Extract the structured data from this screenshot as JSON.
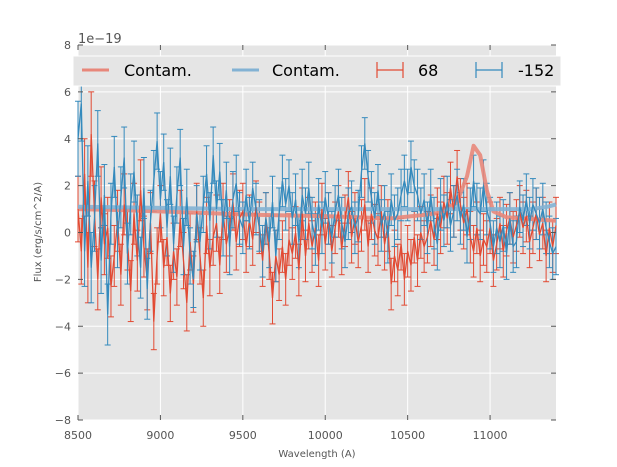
{
  "chart_data": {
    "type": "line",
    "title": "",
    "xlabel": "Wavelength (A)",
    "ylabel": "Flux (erg/s/cm^2/A)",
    "y_offset_label": "1e−19",
    "xlim": [
      8500,
      11400
    ],
    "ylim": [
      -8,
      8
    ],
    "xticks": [
      8500,
      9000,
      9500,
      10000,
      10500,
      11000
    ],
    "xtick_labels": [
      "8500",
      "9000",
      "9500",
      "10000",
      "10500",
      "11000"
    ],
    "yticks": [
      -8,
      -6,
      -4,
      -2,
      0,
      2,
      4,
      6,
      8
    ],
    "ytick_labels": [
      "−8",
      "−6",
      "−4",
      "−2",
      "0",
      "2",
      "4",
      "6",
      "8"
    ],
    "grid": true,
    "legend_position": "top",
    "legend": [
      {
        "label": "Contam.",
        "kind": "line",
        "color": "#E8877A"
      },
      {
        "label": "Contam.",
        "kind": "line",
        "color": "#83B2D4"
      },
      {
        "label": "68",
        "kind": "errorbar",
        "color": "#E24A33"
      },
      {
        "label": "-152",
        "kind": "errorbar",
        "color": "#348ABD"
      }
    ],
    "x_start": 8500,
    "x_step": 20,
    "series": [
      {
        "name": "68",
        "kind": "errorbar",
        "color": "#E24A33",
        "values": [
          1.0,
          -0.8,
          2.5,
          -1.5,
          4.2,
          0.8,
          -2.0,
          1.5,
          -0.5,
          0.2,
          -2.3,
          -1.0,
          0.5,
          -1.8,
          1.2,
          -0.3,
          -2.5,
          0.8,
          -1.2,
          1.8,
          -0.6,
          -2.0,
          0.4,
          -3.8,
          -1.0,
          0.8,
          -1.5,
          -0.2,
          -2.6,
          -0.8,
          -1.9,
          0.6,
          -1.2,
          -3.0,
          -0.4,
          -2.2,
          0.9,
          -1.0,
          -2.8,
          0.3,
          -1.5,
          -0.2,
          0.4,
          -1.4,
          0.9,
          -0.5,
          0.2,
          1.3,
          -0.4,
          0.6,
          0.9,
          -0.6,
          0.5,
          -0.3,
          1.1,
          0.2,
          -1.2,
          0.6,
          -0.9,
          -2.8,
          -1.0,
          -1.8,
          -0.6,
          -2.0,
          -0.3,
          -0.9,
          0.0,
          -1.6,
          0.8,
          -1.0,
          0.4,
          -0.6,
          0.2,
          -1.2,
          1.0,
          -0.5,
          0.6,
          -0.8,
          0.2,
          0.9,
          -0.7,
          0.5,
          1.5,
          -0.2,
          0.6,
          -0.4,
          0.3,
          1.2,
          -0.6,
          0.8,
          0.1,
          -0.3,
          0.9,
          -0.5,
          0.3,
          -2.2,
          -1.0,
          -1.6,
          -0.5,
          -2.0,
          -0.8,
          -1.4,
          -0.2,
          -1.2,
          0.0,
          -0.6,
          -0.2,
          0.5,
          -0.3,
          0.8,
          0.2,
          1.3,
          0.6,
          1.9,
          0.9,
          2.4,
          1.2,
          0.4,
          1.0,
          -0.2,
          -0.8,
          0.2,
          -1.0,
          -0.3,
          -0.6,
          0.2,
          -1.2,
          -0.5,
          0.4,
          -0.8,
          0.1,
          0.6,
          -0.2,
          0.3,
          0.9,
          0.2,
          0.7,
          -0.4,
          0.2,
          0.8,
          -0.1,
          0.4,
          -1.0,
          0.2,
          -0.6,
          0.3,
          -0.9
        ],
        "errors": [
          1.4,
          1.4,
          1.5,
          1.5,
          1.8,
          1.4,
          1.3,
          1.3,
          1.3,
          1.3,
          1.3,
          1.3,
          1.3,
          1.3,
          1.3,
          1.3,
          1.3,
          1.3,
          1.3,
          1.3,
          1.3,
          1.3,
          1.3,
          1.2,
          1.2,
          1.2,
          1.2,
          1.2,
          1.2,
          1.2,
          1.2,
          1.2,
          1.2,
          1.2,
          1.2,
          1.2,
          1.2,
          1.2,
          1.2,
          1.2,
          1.2,
          1.2,
          1.2,
          1.2,
          1.2,
          1.2,
          1.2,
          1.2,
          1.2,
          1.2,
          1.2,
          1.1,
          1.1,
          1.1,
          1.1,
          1.1,
          1.1,
          1.1,
          1.1,
          1.1,
          1.1,
          1.1,
          1.1,
          1.1,
          1.1,
          1.1,
          1.1,
          1.1,
          1.1,
          1.1,
          1.1,
          1.1,
          1.1,
          1.1,
          1.1,
          1.1,
          1.1,
          1.1,
          1.1,
          1.1,
          1.1,
          1.1,
          1.1,
          1.1,
          1.1,
          1.1,
          1.1,
          1.1,
          1.1,
          1.1,
          1.1,
          1.1,
          1.1,
          1.1,
          1.1,
          1.1,
          1.1,
          1.1,
          1.1,
          1.1,
          1.1,
          1.1,
          1.1,
          1.1,
          1.1,
          1.1,
          1.1,
          1.1,
          1.1,
          1.1,
          1.1,
          1.1,
          1.1,
          1.1,
          1.1,
          1.1,
          1.1,
          1.1,
          1.1,
          1.1,
          1.1,
          1.1,
          1.1,
          1.1,
          1.1,
          1.1,
          1.1,
          1.1,
          1.1,
          1.1,
          1.1,
          1.1,
          1.1,
          1.1,
          1.1,
          1.1,
          1.1,
          1.1,
          1.1,
          1.1,
          1.1,
          1.1,
          1.1,
          1.1,
          1.1
        ]
      },
      {
        "name": "-152",
        "kind": "errorbar",
        "color": "#348ABD",
        "values": [
          4.0,
          5.5,
          -0.8,
          2.2,
          -1.5,
          0.6,
          3.8,
          -1.2,
          1.6,
          -3.5,
          0.8,
          2.8,
          -0.2,
          1.5,
          3.2,
          -0.9,
          1.2,
          2.6,
          0.3,
          -1.5,
          1.9,
          -2.4,
          0.5,
          2.2,
          3.9,
          1.4,
          3.0,
          0.2,
          2.4,
          -0.5,
          1.6,
          3.2,
          -0.6,
          1.5,
          -1.0,
          -2.0,
          0.8,
          -0.4,
          1.2,
          2.5,
          0.5,
          3.3,
          1.0,
          2.6,
          0.2,
          1.8,
          -0.6,
          1.4,
          2.1,
          0.6,
          0.2,
          1.6,
          0.4,
          1.9,
          1.0,
          0.3,
          -0.8,
          0.6,
          -0.4,
          1.3,
          -1.0,
          0.8,
          2.2,
          1.2,
          2.0,
          0.6,
          1.4,
          -0.4,
          1.6,
          0.8,
          1.9,
          0.4,
          -0.3,
          1.2,
          0.2,
          1.5,
          0.6,
          -0.2,
          0.9,
          1.6,
          0.4,
          -0.4,
          0.8,
          1.1,
          0.2,
          0.7,
          2.6,
          3.8,
          2.4,
          1.5,
          0.6,
          1.8,
          0.3,
          0.9,
          -0.2,
          1.4,
          0.5,
          0.8,
          1.6,
          2.2,
          1.6,
          2.8,
          2.0,
          1.6,
          0.8,
          1.4,
          0.2,
          1.6,
          0.4,
          -0.5,
          1.2,
          0.5,
          1.3,
          0.3,
          0.9,
          1.6,
          0.6,
          1.2,
          -0.2,
          0.8,
          2.2,
          1.0,
          0.8,
          2.0,
          1.0,
          0.4,
          -0.6,
          0.2,
          -0.4,
          0.3,
          -0.9,
          0.6,
          -0.6,
          -0.4,
          1.1,
          0.5,
          1.4,
          0.4,
          1.2,
          0.8,
          0.4,
          1.0,
          0.2,
          -0.4,
          -0.9,
          -0.6
        ],
        "errors": [
          1.6,
          1.6,
          1.5,
          1.5,
          1.5,
          1.4,
          1.4,
          1.4,
          1.3,
          1.3,
          1.3,
          1.3,
          1.3,
          1.3,
          1.3,
          1.3,
          1.3,
          1.3,
          1.3,
          1.3,
          1.3,
          1.3,
          1.3,
          1.3,
          1.2,
          1.2,
          1.2,
          1.2,
          1.2,
          1.2,
          1.2,
          1.2,
          1.2,
          1.2,
          1.2,
          1.2,
          1.2,
          1.2,
          1.2,
          1.2,
          1.2,
          1.2,
          1.2,
          1.2,
          1.2,
          1.2,
          1.2,
          1.2,
          1.2,
          1.1,
          1.1,
          1.1,
          1.1,
          1.1,
          1.1,
          1.1,
          1.1,
          1.1,
          1.1,
          1.1,
          1.1,
          1.1,
          1.1,
          1.1,
          1.1,
          1.1,
          1.1,
          1.1,
          1.1,
          1.1,
          1.1,
          1.1,
          1.1,
          1.1,
          1.1,
          1.1,
          1.1,
          1.1,
          1.1,
          1.1,
          1.1,
          1.1,
          1.1,
          1.1,
          1.1,
          1.1,
          1.1,
          1.1,
          1.1,
          1.1,
          1.1,
          1.1,
          1.1,
          1.1,
          1.1,
          1.1,
          1.1,
          1.1,
          1.1,
          1.1,
          1.1,
          1.1,
          1.1,
          1.1,
          1.1,
          1.1,
          1.1,
          1.1,
          1.1,
          1.1,
          1.1,
          1.1,
          1.1,
          1.1,
          1.1,
          1.1,
          1.1,
          1.1,
          1.1,
          1.1,
          1.1,
          1.1,
          1.1,
          1.1,
          1.1,
          1.1,
          1.1,
          1.1,
          1.1,
          1.1,
          1.1,
          1.1,
          1.1,
          1.1,
          1.1,
          1.1,
          1.1,
          1.1,
          1.1,
          1.1,
          1.1,
          1.1,
          1.1,
          1.1,
          1.1
        ]
      }
    ],
    "contam_series": [
      {
        "name": "Contam.",
        "color": "#E8877A",
        "points": [
          [
            8500,
            1.0
          ],
          [
            8800,
            0.95
          ],
          [
            9200,
            0.85
          ],
          [
            9600,
            0.75
          ],
          [
            10000,
            0.7
          ],
          [
            10400,
            0.6
          ],
          [
            10600,
            0.75
          ],
          [
            10700,
            0.85
          ],
          [
            10800,
            1.3
          ],
          [
            10860,
            2.4
          ],
          [
            10900,
            3.7
          ],
          [
            10940,
            3.3
          ],
          [
            10980,
            1.8
          ],
          [
            11020,
            0.9
          ],
          [
            11100,
            0.65
          ],
          [
            11300,
            0.55
          ],
          [
            11400,
            0.5
          ]
        ]
      },
      {
        "name": "Contam.",
        "color": "#83B2D4",
        "points": [
          [
            8500,
            1.1
          ],
          [
            9000,
            1.05
          ],
          [
            9500,
            1.0
          ],
          [
            10000,
            1.0
          ],
          [
            10500,
            1.0
          ],
          [
            11000,
            1.0
          ],
          [
            11250,
            1.0
          ],
          [
            11350,
            1.1
          ],
          [
            11400,
            1.2
          ]
        ]
      }
    ]
  }
}
